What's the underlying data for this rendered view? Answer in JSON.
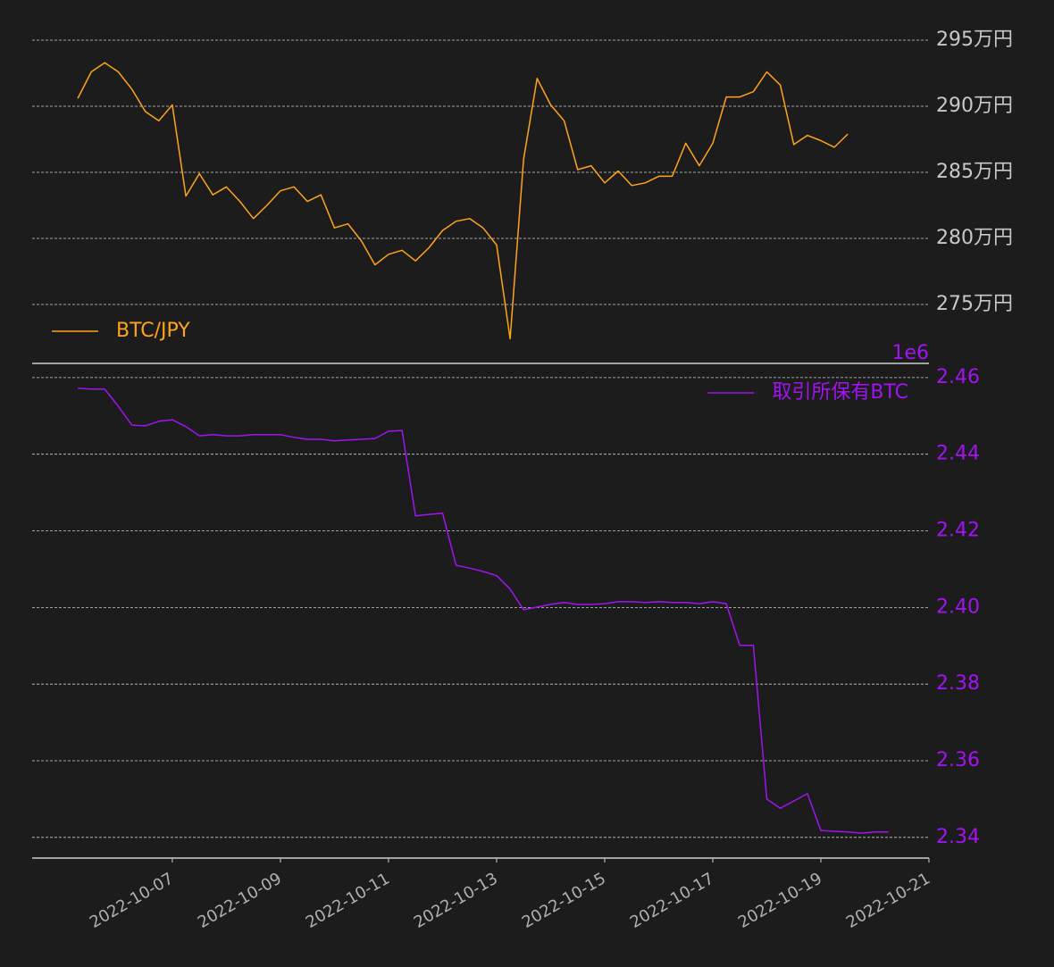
{
  "chart_data": [
    {
      "type": "line",
      "x": [
        "2022-10-05T06:00",
        "2022-10-05T12:00",
        "2022-10-05T18:00",
        "2022-10-06T00:00",
        "2022-10-06T06:00",
        "2022-10-06T12:00",
        "2022-10-06T18:00",
        "2022-10-07T00:00",
        "2022-10-07T06:00",
        "2022-10-07T12:00",
        "2022-10-07T18:00",
        "2022-10-08T00:00",
        "2022-10-08T06:00",
        "2022-10-08T12:00",
        "2022-10-08T18:00",
        "2022-10-09T00:00",
        "2022-10-09T06:00",
        "2022-10-09T12:00",
        "2022-10-09T18:00",
        "2022-10-10T00:00",
        "2022-10-10T06:00",
        "2022-10-10T12:00",
        "2022-10-10T18:00",
        "2022-10-11T00:00",
        "2022-10-11T06:00",
        "2022-10-11T12:00",
        "2022-10-11T18:00",
        "2022-10-12T00:00",
        "2022-10-12T06:00",
        "2022-10-12T12:00",
        "2022-10-12T18:00",
        "2022-10-13T00:00",
        "2022-10-13T06:00",
        "2022-10-13T12:00",
        "2022-10-13T18:00",
        "2022-10-14T00:00",
        "2022-10-14T06:00",
        "2022-10-14T12:00",
        "2022-10-14T18:00",
        "2022-10-15T00:00",
        "2022-10-15T06:00",
        "2022-10-15T12:00",
        "2022-10-15T18:00",
        "2022-10-16T00:00",
        "2022-10-16T06:00",
        "2022-10-16T12:00",
        "2022-10-16T18:00",
        "2022-10-17T00:00",
        "2022-10-17T06:00",
        "2022-10-17T12:00",
        "2022-10-17T18:00",
        "2022-10-18T00:00",
        "2022-10-18T06:00",
        "2022-10-18T12:00",
        "2022-10-18T18:00",
        "2022-10-19T00:00",
        "2022-10-19T06:00",
        "2022-10-19T12:00"
      ],
      "xlim": [
        "2022-10-04T09:45",
        "2022-10-21T00:00"
      ],
      "ylim": [
        2705400,
        2972300
      ],
      "yticks": [
        {
          "value": 2750000,
          "label": "275万円"
        },
        {
          "value": 2800000,
          "label": "280万円"
        },
        {
          "value": 2850000,
          "label": "285万円"
        },
        {
          "value": 2900000,
          "label": "290万円"
        },
        {
          "value": 2950000,
          "label": "295万円"
        }
      ],
      "ytick_color": "#c8c8c8",
      "grid": true,
      "legend": "lower left",
      "series": [
        {
          "name": "BTC/JPY",
          "color": "#ffa41b",
          "values": [
            2906000,
            2926000,
            2933000,
            2926000,
            2913000,
            2896000,
            2889000,
            2901000,
            2832000,
            2849000,
            2833000,
            2839000,
            2828000,
            2815000,
            2825000,
            2836000,
            2839000,
            2828000,
            2833000,
            2808000,
            2811000,
            2798000,
            2780000,
            2788000,
            2791000,
            2783000,
            2793000,
            2806000,
            2813000,
            2815000,
            2808000,
            2795000,
            2724000,
            2860000,
            2921000,
            2901000,
            2889000,
            2852000,
            2855000,
            2842000,
            2851000,
            2840000,
            2842000,
            2847000,
            2847000,
            2872000,
            2855000,
            2872000,
            2907000,
            2907000,
            2911000,
            2926000,
            2916000,
            2871000,
            2878000,
            2874000,
            2869000,
            2879000
          ]
        }
      ]
    },
    {
      "type": "line",
      "x": [
        "2022-10-05T06:00",
        "2022-10-05T12:00",
        "2022-10-05T18:00",
        "2022-10-06T00:00",
        "2022-10-06T06:00",
        "2022-10-06T12:00",
        "2022-10-06T18:00",
        "2022-10-07T00:00",
        "2022-10-07T06:00",
        "2022-10-07T12:00",
        "2022-10-07T18:00",
        "2022-10-08T00:00",
        "2022-10-08T06:00",
        "2022-10-08T12:00",
        "2022-10-08T18:00",
        "2022-10-09T00:00",
        "2022-10-09T06:00",
        "2022-10-09T12:00",
        "2022-10-09T18:00",
        "2022-10-10T00:00",
        "2022-10-10T06:00",
        "2022-10-10T12:00",
        "2022-10-10T18:00",
        "2022-10-11T00:00",
        "2022-10-11T06:00",
        "2022-10-11T12:00",
        "2022-10-11T18:00",
        "2022-10-12T00:00",
        "2022-10-12T06:00",
        "2022-10-12T12:00",
        "2022-10-12T18:00",
        "2022-10-13T00:00",
        "2022-10-13T06:00",
        "2022-10-13T12:00",
        "2022-10-13T18:00",
        "2022-10-14T00:00",
        "2022-10-14T06:00",
        "2022-10-14T12:00",
        "2022-10-14T18:00",
        "2022-10-15T00:00",
        "2022-10-15T06:00",
        "2022-10-15T12:00",
        "2022-10-15T18:00",
        "2022-10-16T00:00",
        "2022-10-16T06:00",
        "2022-10-16T12:00",
        "2022-10-16T18:00",
        "2022-10-17T00:00",
        "2022-10-17T06:00",
        "2022-10-17T12:00",
        "2022-10-17T18:00",
        "2022-10-18T00:00",
        "2022-10-18T06:00",
        "2022-10-18T12:00",
        "2022-10-18T18:00",
        "2022-10-19T00:00",
        "2022-10-19T06:00",
        "2022-10-19T12:00",
        "2022-10-19T18:00",
        "2022-10-20T00:00",
        "2022-10-20T06:00"
      ],
      "xlim": [
        "2022-10-04T09:45",
        "2022-10-21T00:00"
      ],
      "xticks": [
        "2022-10-07",
        "2022-10-09",
        "2022-10-11",
        "2022-10-13",
        "2022-10-15",
        "2022-10-17",
        "2022-10-19",
        "2022-10-21"
      ],
      "ylim": [
        2334600,
        2463700
      ],
      "yticks": [
        {
          "value": 2340000,
          "label": "2.34"
        },
        {
          "value": 2360000,
          "label": "2.36"
        },
        {
          "value": 2380000,
          "label": "2.38"
        },
        {
          "value": 2400000,
          "label": "2.40"
        },
        {
          "value": 2420000,
          "label": "2.42"
        },
        {
          "value": 2440000,
          "label": "2.44"
        },
        {
          "value": 2460000,
          "label": "2.46"
        }
      ],
      "offset_label": "1e6",
      "ytick_color": "#a313f2",
      "grid": true,
      "legend": "upper right",
      "series": [
        {
          "name": "取引所保有BTC",
          "color": "#a313f2",
          "values": [
            2457200,
            2457000,
            2457000,
            2452500,
            2447600,
            2447400,
            2448600,
            2449000,
            2447200,
            2444800,
            2445100,
            2444800,
            2444800,
            2445100,
            2445100,
            2445100,
            2444400,
            2443900,
            2443900,
            2443500,
            2443700,
            2443900,
            2444100,
            2446000,
            2446200,
            2423900,
            2424300,
            2424600,
            2411000,
            2410300,
            2409400,
            2408300,
            2404800,
            2399400,
            2400100,
            2400800,
            2401300,
            2400800,
            2400800,
            2401000,
            2401500,
            2401500,
            2401300,
            2401500,
            2401300,
            2401300,
            2401000,
            2401500,
            2401000,
            2390100,
            2390100,
            2350000,
            2347600,
            2349500,
            2351400,
            2341800,
            2341600,
            2341400,
            2341100,
            2341400,
            2341400
          ]
        }
      ]
    }
  ]
}
